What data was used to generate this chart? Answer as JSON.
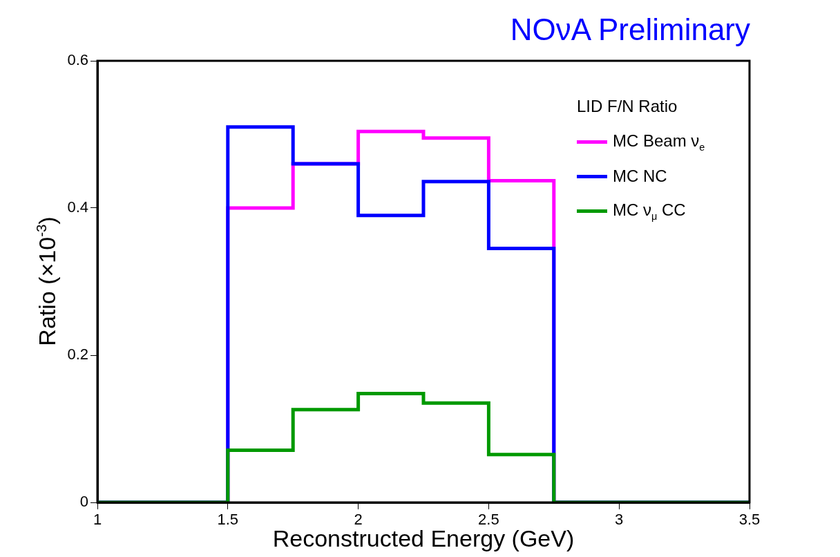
{
  "chart_data": {
    "type": "histogram",
    "title": "NOνA Preliminary",
    "xlabel": "Reconstructed Energy (GeV)",
    "ylabel": "Ratio (×10$^{-3}$)",
    "legend_title": "LID F/N Ratio",
    "bins": [
      1,
      1.25,
      1.5,
      1.75,
      2,
      2.25,
      2.5,
      2.75,
      3,
      3.25,
      3.5
    ],
    "series": [
      {
        "name": "MC Beam ν$_{e}$",
        "color": "#ff00ff",
        "values": [
          0,
          0,
          0.4,
          0.46,
          0.504,
          0.495,
          0.437,
          0,
          0,
          0
        ]
      },
      {
        "name": "MC NC",
        "color": "#0000ff",
        "values": [
          0,
          0,
          0.51,
          0.46,
          0.39,
          0.436,
          0.345,
          0,
          0,
          0
        ]
      },
      {
        "name": "MC ν$_{μ}$ CC",
        "color": "#009900",
        "values": [
          0,
          0,
          0.071,
          0.126,
          0.148,
          0.135,
          0.065,
          0,
          0,
          0
        ]
      }
    ],
    "xlim": [
      1,
      3.5
    ],
    "xticks": [
      1,
      1.5,
      2,
      2.5,
      3,
      3.5
    ],
    "ylim": [
      0,
      0.6
    ],
    "yticks": [
      0,
      0.2,
      0.4,
      0.6
    ],
    "legend": "top right",
    "grid": false
  }
}
